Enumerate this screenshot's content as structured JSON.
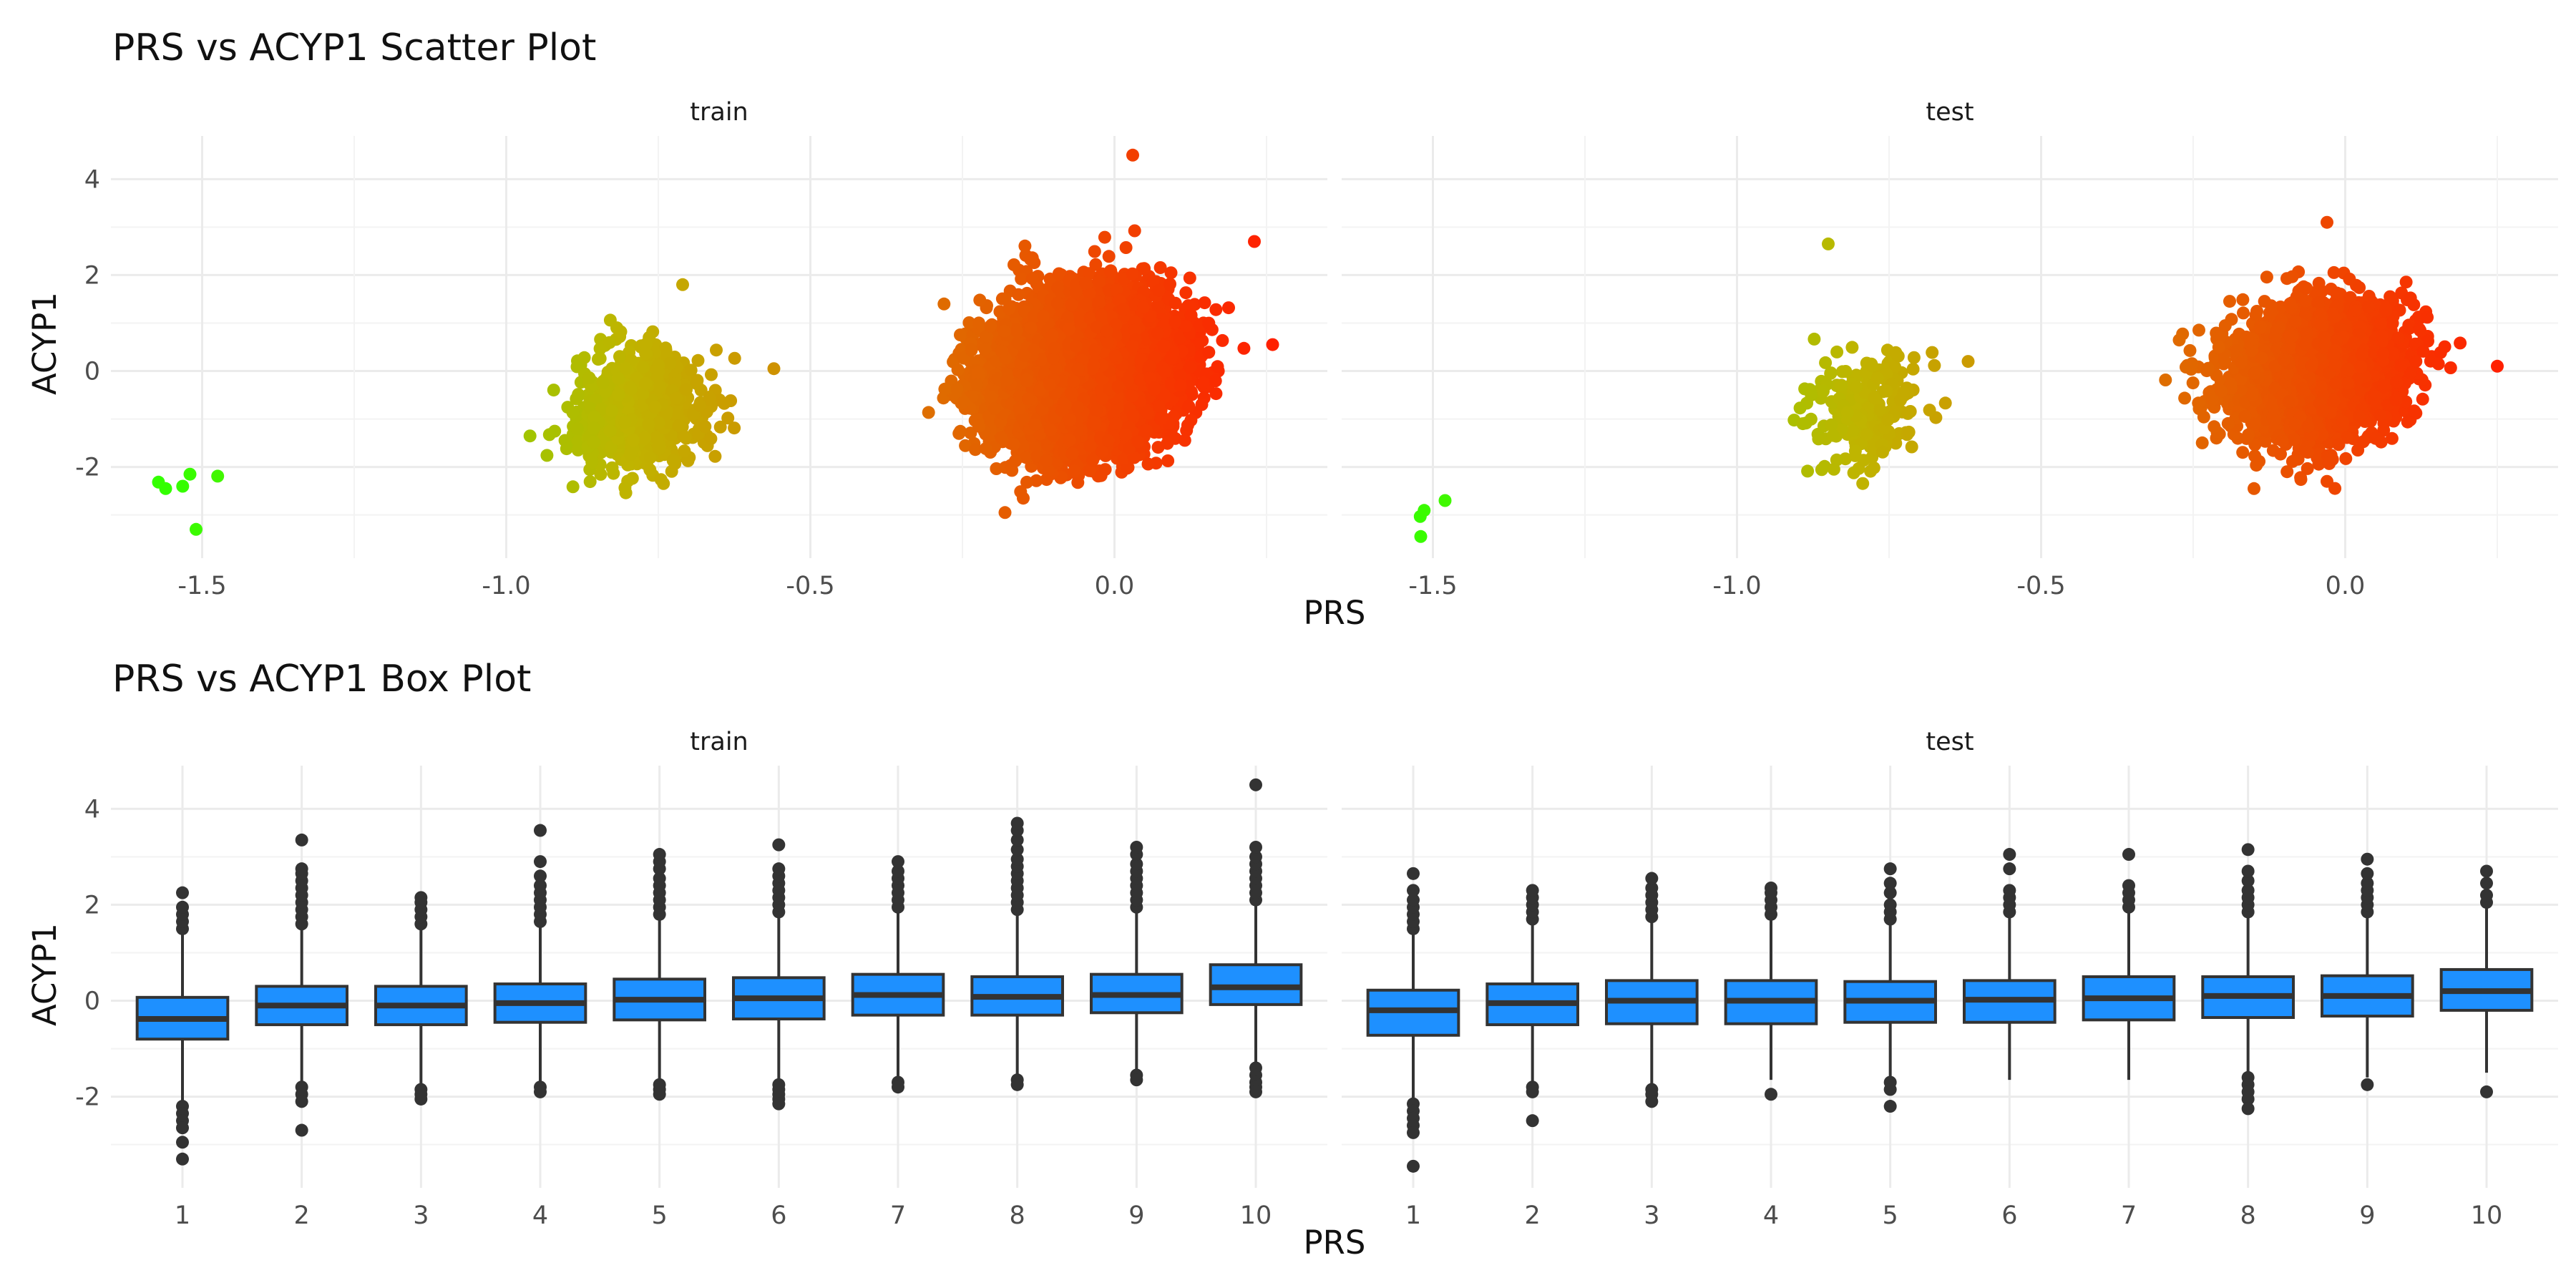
{
  "chart_data": [
    {
      "type": "scatter",
      "title": "PRS vs ACYP1 Scatter Plot",
      "xlabel": "PRS",
      "ylabel": "ACYP1",
      "facets": [
        "train",
        "test"
      ],
      "xlim": [
        -1.65,
        0.35
      ],
      "ylim": [
        -3.9,
        4.9
      ],
      "x_ticks": [
        -1.5,
        -1.0,
        -0.5,
        0.0
      ],
      "x_tick_labels": [
        "-1.5",
        "-1.0",
        "-0.5",
        "0.0"
      ],
      "y_ticks": [
        -2,
        0,
        2,
        4
      ],
      "y_tick_labels": [
        "-2",
        "0",
        "2",
        "4"
      ],
      "grid": true,
      "color_scale": {
        "low": "#33ff00",
        "mid": "#c0b400",
        "high": "#ff2000",
        "variable": "PRS"
      },
      "panels": [
        {
          "facet": "train",
          "clusters": [
            {
              "x_center": -1.53,
              "x_sd": 0.02,
              "y_center": -2.6,
              "y_sd": 0.5,
              "n": 3
            },
            {
              "x_center": -0.78,
              "x_sd": 0.05,
              "y_center": -0.8,
              "y_sd": 0.55,
              "n": 900
            },
            {
              "x_center": -0.05,
              "x_sd": 0.07,
              "y_center": 0.0,
              "y_sd": 0.72,
              "n": 9000
            }
          ],
          "extreme_points": [
            {
              "x": -1.56,
              "y": -2.45
            },
            {
              "x": -1.52,
              "y": -2.15
            },
            {
              "x": -1.51,
              "y": -3.3
            },
            {
              "x": -0.56,
              "y": 0.05
            },
            {
              "x": -0.71,
              "y": 1.8
            },
            {
              "x": 0.03,
              "y": 4.5
            },
            {
              "x": 0.26,
              "y": 0.55
            },
            {
              "x": 0.23,
              "y": 2.7
            },
            {
              "x": -0.18,
              "y": -2.95
            },
            {
              "x": -0.15,
              "y": -2.65
            }
          ]
        },
        {
          "facet": "test",
          "clusters": [
            {
              "x_center": -1.5,
              "x_sd": 0.02,
              "y_center": -3.0,
              "y_sd": 0.4,
              "n": 2
            },
            {
              "x_center": -0.79,
              "x_sd": 0.05,
              "y_center": -0.8,
              "y_sd": 0.55,
              "n": 200
            },
            {
              "x_center": -0.05,
              "x_sd": 0.07,
              "y_center": 0.0,
              "y_sd": 0.65,
              "n": 3000
            }
          ],
          "extreme_points": [
            {
              "x": -1.52,
              "y": -3.45
            },
            {
              "x": -1.48,
              "y": -2.7
            },
            {
              "x": -0.85,
              "y": 2.65
            },
            {
              "x": -0.62,
              "y": 0.2
            },
            {
              "x": 0.25,
              "y": 0.1
            },
            {
              "x": -0.03,
              "y": 3.1
            },
            {
              "x": -0.15,
              "y": -2.45
            },
            {
              "x": -0.03,
              "y": -2.3
            }
          ]
        }
      ]
    },
    {
      "type": "box",
      "title": "PRS vs ACYP1 Box Plot",
      "xlabel": "PRS",
      "ylabel": "ACYP1",
      "facets": [
        "train",
        "test"
      ],
      "categories": [
        "1",
        "2",
        "3",
        "4",
        "5",
        "6",
        "7",
        "8",
        "9",
        "10"
      ],
      "ylim": [
        -3.9,
        4.9
      ],
      "y_ticks": [
        -2,
        0,
        2,
        4
      ],
      "y_tick_labels": [
        "-2",
        "0",
        "2",
        "4"
      ],
      "grid": true,
      "fill_color": "#1e90ff",
      "panels": [
        {
          "facet": "train",
          "boxes": [
            {
              "q1": -0.8,
              "median": -0.38,
              "q3": 0.07,
              "whisker_low": -2.1,
              "whisker_high": 1.4,
              "outliers": [
                -2.2,
                -2.35,
                -2.5,
                -2.65,
                -2.95,
                -3.3,
                1.5,
                1.65,
                1.8,
                1.95,
                2.25
              ]
            },
            {
              "q1": -0.5,
              "median": -0.1,
              "q3": 0.3,
              "whisker_low": -1.7,
              "whisker_high": 1.5,
              "outliers": [
                -1.8,
                -1.95,
                -2.1,
                -2.7,
                1.6,
                1.75,
                1.9,
                2.05,
                2.2,
                2.35,
                2.5,
                2.65,
                2.75,
                3.35
              ]
            },
            {
              "q1": -0.5,
              "median": -0.1,
              "q3": 0.3,
              "whisker_low": -1.75,
              "whisker_high": 1.5,
              "outliers": [
                -1.85,
                -1.95,
                -2.05,
                1.6,
                1.75,
                1.9,
                2.05,
                2.15
              ]
            },
            {
              "q1": -0.45,
              "median": -0.05,
              "q3": 0.35,
              "whisker_low": -1.75,
              "whisker_high": 1.55,
              "outliers": [
                -1.8,
                -1.9,
                1.65,
                1.8,
                1.95,
                2.1,
                2.25,
                2.4,
                2.6,
                2.9,
                3.55
              ]
            },
            {
              "q1": -0.4,
              "median": 0.02,
              "q3": 0.45,
              "whisker_low": -1.65,
              "whisker_high": 1.7,
              "outliers": [
                -1.75,
                -1.85,
                -1.95,
                1.8,
                1.95,
                2.1,
                2.25,
                2.4,
                2.55,
                2.75,
                2.9,
                3.05
              ]
            },
            {
              "q1": -0.38,
              "median": 0.05,
              "q3": 0.48,
              "whisker_low": -1.65,
              "whisker_high": 1.75,
              "outliers": [
                -1.75,
                -1.85,
                -1.95,
                -2.05,
                -2.15,
                1.85,
                2.0,
                2.15,
                2.3,
                2.45,
                2.6,
                2.75,
                3.25
              ]
            },
            {
              "q1": -0.3,
              "median": 0.12,
              "q3": 0.55,
              "whisker_low": -1.6,
              "whisker_high": 1.85,
              "outliers": [
                -1.7,
                -1.8,
                1.95,
                2.1,
                2.25,
                2.4,
                2.55,
                2.7,
                2.9
              ]
            },
            {
              "q1": -0.3,
              "median": 0.08,
              "q3": 0.5,
              "whisker_low": -1.55,
              "whisker_high": 1.8,
              "outliers": [
                -1.65,
                -1.75,
                1.9,
                2.05,
                2.2,
                2.35,
                2.5,
                2.65,
                2.8,
                2.95,
                3.15,
                3.35,
                3.55,
                3.7
              ]
            },
            {
              "q1": -0.25,
              "median": 0.12,
              "q3": 0.55,
              "whisker_low": -1.5,
              "whisker_high": 1.85,
              "outliers": [
                -1.55,
                -1.65,
                1.95,
                2.1,
                2.25,
                2.4,
                2.55,
                2.7,
                2.85,
                3.05,
                3.2
              ]
            },
            {
              "q1": -0.08,
              "median": 0.28,
              "q3": 0.75,
              "whisker_low": -1.3,
              "whisker_high": 2.0,
              "outliers": [
                -1.4,
                -1.55,
                -1.7,
                -1.8,
                -1.9,
                2.1,
                2.25,
                2.4,
                2.55,
                2.7,
                2.85,
                3.0,
                3.2,
                4.5
              ]
            }
          ]
        },
        {
          "facet": "test",
          "boxes": [
            {
              "q1": -0.72,
              "median": -0.2,
              "q3": 0.22,
              "whisker_low": -2.05,
              "whisker_high": 1.4,
              "outliers": [
                -2.15,
                -2.3,
                -2.45,
                -2.6,
                -2.75,
                -3.45,
                1.5,
                1.65,
                1.8,
                1.95,
                2.1,
                2.3,
                2.65
              ]
            },
            {
              "q1": -0.5,
              "median": -0.05,
              "q3": 0.35,
              "whisker_low": -1.75,
              "whisker_high": 1.6,
              "outliers": [
                -1.8,
                -1.9,
                -2.5,
                1.7,
                1.85,
                2.0,
                2.15,
                2.3
              ]
            },
            {
              "q1": -0.48,
              "median": 0.0,
              "q3": 0.42,
              "whisker_low": -1.75,
              "whisker_high": 1.65,
              "outliers": [
                -1.85,
                -1.95,
                -2.1,
                1.75,
                1.9,
                2.05,
                2.2,
                2.35,
                2.55
              ]
            },
            {
              "q1": -0.48,
              "median": 0.0,
              "q3": 0.42,
              "whisker_low": -1.65,
              "whisker_high": 1.7,
              "outliers": [
                -1.95,
                1.8,
                1.95,
                2.1,
                2.25,
                2.35
              ]
            },
            {
              "q1": -0.45,
              "median": 0.0,
              "q3": 0.4,
              "whisker_low": -1.6,
              "whisker_high": 1.6,
              "outliers": [
                -1.7,
                -1.85,
                -2.2,
                1.7,
                1.85,
                2.0,
                2.25,
                2.45,
                2.75
              ]
            },
            {
              "q1": -0.45,
              "median": 0.02,
              "q3": 0.42,
              "whisker_low": -1.65,
              "whisker_high": 1.75,
              "outliers": [
                1.85,
                2.0,
                2.15,
                2.3,
                2.75,
                3.05
              ]
            },
            {
              "q1": -0.4,
              "median": 0.05,
              "q3": 0.5,
              "whisker_low": -1.65,
              "whisker_high": 1.85,
              "outliers": [
                1.95,
                2.1,
                2.25,
                2.4,
                3.05
              ]
            },
            {
              "q1": -0.35,
              "median": 0.1,
              "q3": 0.5,
              "whisker_low": -1.5,
              "whisker_high": 1.75,
              "outliers": [
                -1.6,
                -1.75,
                -1.9,
                -2.05,
                -2.25,
                1.85,
                2.0,
                2.15,
                2.3,
                2.5,
                2.7,
                3.15
              ]
            },
            {
              "q1": -0.32,
              "median": 0.1,
              "q3": 0.52,
              "whisker_low": -1.6,
              "whisker_high": 1.75,
              "outliers": [
                -1.75,
                1.85,
                2.0,
                2.15,
                2.3,
                2.45,
                2.65,
                2.95
              ]
            },
            {
              "q1": -0.2,
              "median": 0.2,
              "q3": 0.65,
              "whisker_low": -1.5,
              "whisker_high": 1.95,
              "outliers": [
                -1.9,
                2.05,
                2.2,
                2.45,
                2.7
              ]
            }
          ]
        }
      ]
    }
  ]
}
